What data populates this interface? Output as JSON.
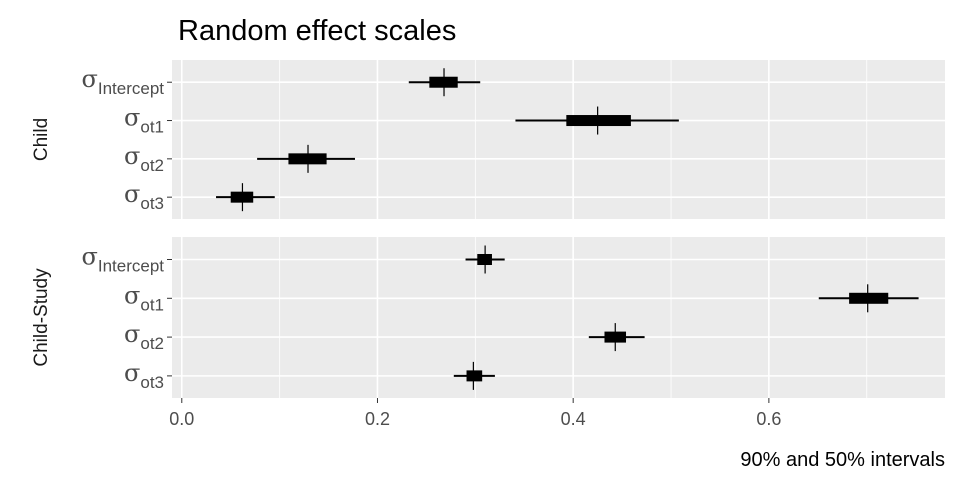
{
  "chart_data": {
    "type": "interval",
    "title": "Random effect scales",
    "xlabel": "90% and 50% intervals",
    "xlim": [
      -0.01,
      0.78
    ],
    "x_ticks": [
      {
        "value": 0.0,
        "label": "0.0"
      },
      {
        "value": 0.2,
        "label": "0.2"
      },
      {
        "value": 0.4,
        "label": "0.4"
      },
      {
        "value": 0.6,
        "label": "0.6"
      }
    ],
    "facets": [
      {
        "name": "Child",
        "rows": [
          {
            "symbol": "σ",
            "sub": "Intercept",
            "ll": 0.232,
            "l": 0.253,
            "m": 0.268,
            "h": 0.282,
            "hh": 0.305
          },
          {
            "symbol": "σ",
            "sub": "ot1",
            "ll": 0.341,
            "l": 0.393,
            "m": 0.425,
            "h": 0.459,
            "hh": 0.508
          },
          {
            "symbol": "σ",
            "sub": "ot2",
            "ll": 0.077,
            "l": 0.109,
            "m": 0.129,
            "h": 0.148,
            "hh": 0.177
          },
          {
            "symbol": "σ",
            "sub": "ot3",
            "ll": 0.035,
            "l": 0.05,
            "m": 0.062,
            "h": 0.073,
            "hh": 0.095
          }
        ]
      },
      {
        "name": "Child-Study",
        "rows": [
          {
            "symbol": "σ",
            "sub": "Intercept",
            "ll": 0.29,
            "l": 0.302,
            "m": 0.31,
            "h": 0.317,
            "hh": 0.33
          },
          {
            "symbol": "σ",
            "sub": "ot1",
            "ll": 0.651,
            "l": 0.682,
            "m": 0.701,
            "h": 0.722,
            "hh": 0.753
          },
          {
            "symbol": "σ",
            "sub": "ot2",
            "ll": 0.416,
            "l": 0.432,
            "m": 0.443,
            "h": 0.454,
            "hh": 0.473
          },
          {
            "symbol": "σ",
            "sub": "ot3",
            "ll": 0.278,
            "l": 0.291,
            "m": 0.298,
            "h": 0.307,
            "hh": 0.32
          }
        ]
      }
    ],
    "grid": true,
    "legend": "none",
    "colors": {
      "panel_bg": "#ebebeb",
      "grid": "#ffffff",
      "interval": "#000000"
    }
  }
}
